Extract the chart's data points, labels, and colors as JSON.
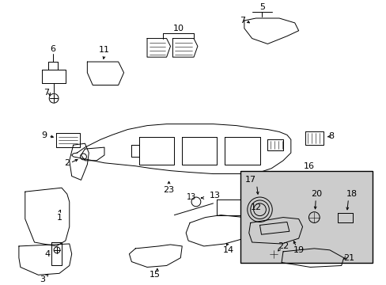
{
  "bg_color": "#ffffff",
  "line_color": "#000000",
  "fig_width": 4.89,
  "fig_height": 3.6,
  "dpi": 100,
  "box16_color": "#cccccc",
  "lw": 0.7
}
